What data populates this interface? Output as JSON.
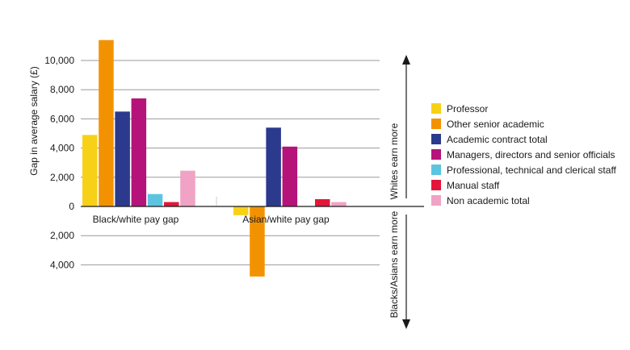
{
  "chart_data": {
    "type": "bar",
    "ylabel": "Gap in average salary (£)",
    "ylim": [
      -5000,
      11500
    ],
    "y_tick_labels": [
      "4,000",
      "2,000",
      "0",
      "2,000",
      "4,000",
      "6,000",
      "8,000",
      "10,000"
    ],
    "y_tick_values": [
      -4000,
      -2000,
      0,
      2000,
      4000,
      6000,
      8000,
      10000
    ],
    "grid": true,
    "legend_position": "right",
    "categories": [
      "Black/white pay gap",
      "Asian/white pay gap"
    ],
    "series": [
      {
        "name": "Professor",
        "color": "#f7d117",
        "values": [
          4900,
          -600
        ]
      },
      {
        "name": "Other senior academic",
        "color": "#f39200",
        "values": [
          11400,
          -4800
        ]
      },
      {
        "name": "Academic contract total",
        "color": "#2b3a8c",
        "values": [
          6500,
          5400
        ]
      },
      {
        "name": "Managers, directors and senior officials",
        "color": "#b5137a",
        "values": [
          7400,
          4100
        ]
      },
      {
        "name": "Professional, technical and clerical staff",
        "color": "#5bc4e0",
        "values": [
          850,
          0
        ]
      },
      {
        "name": "Manual staff",
        "color": "#e3163a",
        "values": [
          300,
          500
        ]
      },
      {
        "name": "Non academic total",
        "color": "#f0a3c4",
        "values": [
          2450,
          300
        ]
      }
    ],
    "annotations": {
      "up": "Whites earn more",
      "down": "Blacks/Asians earn more"
    }
  }
}
